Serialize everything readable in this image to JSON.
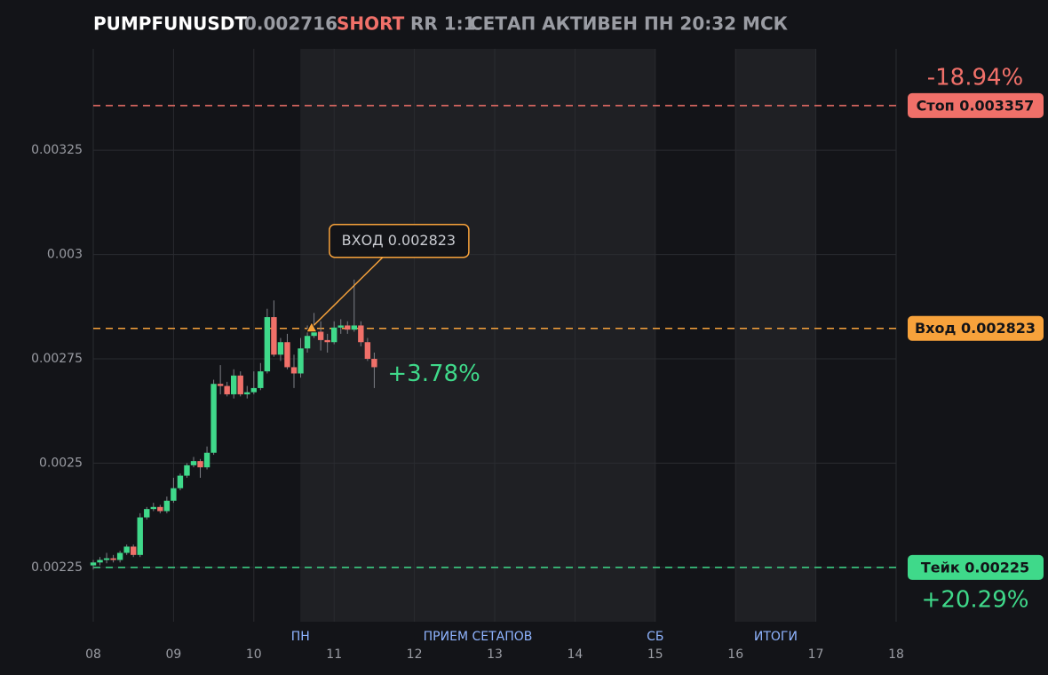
{
  "chart_data": {
    "type": "candlestick",
    "header": {
      "symbol": "PUMPFUNUSDT",
      "price": "0.002716",
      "side": "SHORT",
      "rr": "RR 1:1",
      "status": "СЕТАП АКТИВЕН ПН 20:32 МСК"
    },
    "x": [
      8,
      8.0833,
      8.1667,
      8.25,
      8.3333,
      8.4167,
      8.5,
      8.5833,
      8.6667,
      8.75,
      8.8333,
      8.9167,
      9,
      9.0833,
      9.1667,
      9.25,
      9.3333,
      9.4167,
      9.5,
      9.5833,
      9.6667,
      9.75,
      9.8333,
      9.9167,
      10,
      10.0833,
      10.1667,
      10.25,
      10.3333,
      10.4167,
      10.5,
      10.5833,
      10.6667,
      10.75,
      10.8333,
      10.9167,
      11,
      11.0833,
      11.1667,
      11.25,
      11.3333,
      11.4167,
      11.5
    ],
    "open": [
      0.002255,
      0.002262,
      0.002268,
      0.002272,
      0.002268,
      0.002285,
      0.0023,
      0.00228,
      0.00237,
      0.00239,
      0.002395,
      0.002385,
      0.00241,
      0.00244,
      0.00247,
      0.002495,
      0.002505,
      0.00249,
      0.002525,
      0.00269,
      0.002685,
      0.002665,
      0.00271,
      0.002665,
      0.00267,
      0.00268,
      0.00272,
      0.00285,
      0.00276,
      0.00279,
      0.00273,
      0.002715,
      0.002775,
      0.002805,
      0.002815,
      0.002795,
      0.00279,
      0.002825,
      0.00283,
      0.00282,
      0.00283,
      0.00279,
      0.00275
    ],
    "high": [
      0.002268,
      0.002275,
      0.002285,
      0.00228,
      0.00229,
      0.002305,
      0.002305,
      0.00238,
      0.002395,
      0.002405,
      0.0024,
      0.00242,
      0.002465,
      0.002475,
      0.0025,
      0.002515,
      0.00251,
      0.00254,
      0.0027,
      0.002735,
      0.002695,
      0.002725,
      0.00272,
      0.002685,
      0.00272,
      0.00274,
      0.00287,
      0.00289,
      0.0028,
      0.00281,
      0.00276,
      0.0028,
      0.00283,
      0.00286,
      0.00284,
      0.00281,
      0.00284,
      0.002845,
      0.00284,
      0.00294,
      0.00284,
      0.0028,
      0.002765
    ],
    "low": [
      0.002245,
      0.002255,
      0.00226,
      0.002262,
      0.002262,
      0.00228,
      0.002275,
      0.002275,
      0.002365,
      0.002385,
      0.00238,
      0.00238,
      0.002405,
      0.002435,
      0.002465,
      0.00249,
      0.002465,
      0.002485,
      0.00252,
      0.002665,
      0.00266,
      0.002655,
      0.00266,
      0.002655,
      0.002665,
      0.002675,
      0.002715,
      0.002755,
      0.002745,
      0.002725,
      0.00268,
      0.002705,
      0.002765,
      0.0028,
      0.00277,
      0.002765,
      0.002785,
      0.00281,
      0.00281,
      0.002815,
      0.00278,
      0.002745,
      0.00268
    ],
    "close": [
      0.002262,
      0.002268,
      0.002272,
      0.002268,
      0.002285,
      0.0023,
      0.00228,
      0.00237,
      0.00239,
      0.002395,
      0.002385,
      0.00241,
      0.00244,
      0.00247,
      0.002495,
      0.002505,
      0.00249,
      0.002525,
      0.00269,
      0.002685,
      0.002665,
      0.00271,
      0.002665,
      0.00267,
      0.00268,
      0.00272,
      0.00285,
      0.00276,
      0.00279,
      0.00273,
      0.002715,
      0.002775,
      0.002805,
      0.002815,
      0.002795,
      0.00279,
      0.002825,
      0.00283,
      0.00282,
      0.00283,
      0.00279,
      0.00275,
      0.00273
    ],
    "up_color": "#3fd98a",
    "down_color": "#f07069",
    "xlim": [
      8,
      18
    ],
    "xticks": [
      {
        "value": 8,
        "label": "08"
      },
      {
        "value": 9,
        "label": "09"
      },
      10,
      11,
      12,
      13,
      14,
      15,
      16,
      17,
      18
    ],
    "ylim": [
      0.00212,
      0.003493
    ],
    "yticks": [
      0.00225,
      0.0025,
      0.00275,
      0.003,
      0.00325
    ],
    "grid": true,
    "sessions": [
      {
        "start": 10.58,
        "end": 15,
        "label": "ПРИЕМ СЕТАПОВ"
      },
      {
        "start": 16,
        "end": 17,
        "label": "ИТОГИ"
      }
    ],
    "day_markers": [
      {
        "x": 10.58,
        "label": "ПН"
      },
      {
        "x": 15,
        "label": "СБ"
      }
    ],
    "levels": [
      {
        "value": 0.003357,
        "label": "Стоп 0.003357",
        "pct": "-18.94%",
        "color": "#f07069"
      },
      {
        "value": 0.002823,
        "label": "Вход 0.002823",
        "color": "#f7a23b"
      },
      {
        "value": 0.00225,
        "label": "Тейк 0.00225",
        "pct": "+20.29%",
        "color": "#3fd98a"
      }
    ],
    "entry": {
      "x": 10.72,
      "value": 0.002823,
      "label": "ВХОД 0.002823"
    },
    "pnl": "+3.78%"
  }
}
